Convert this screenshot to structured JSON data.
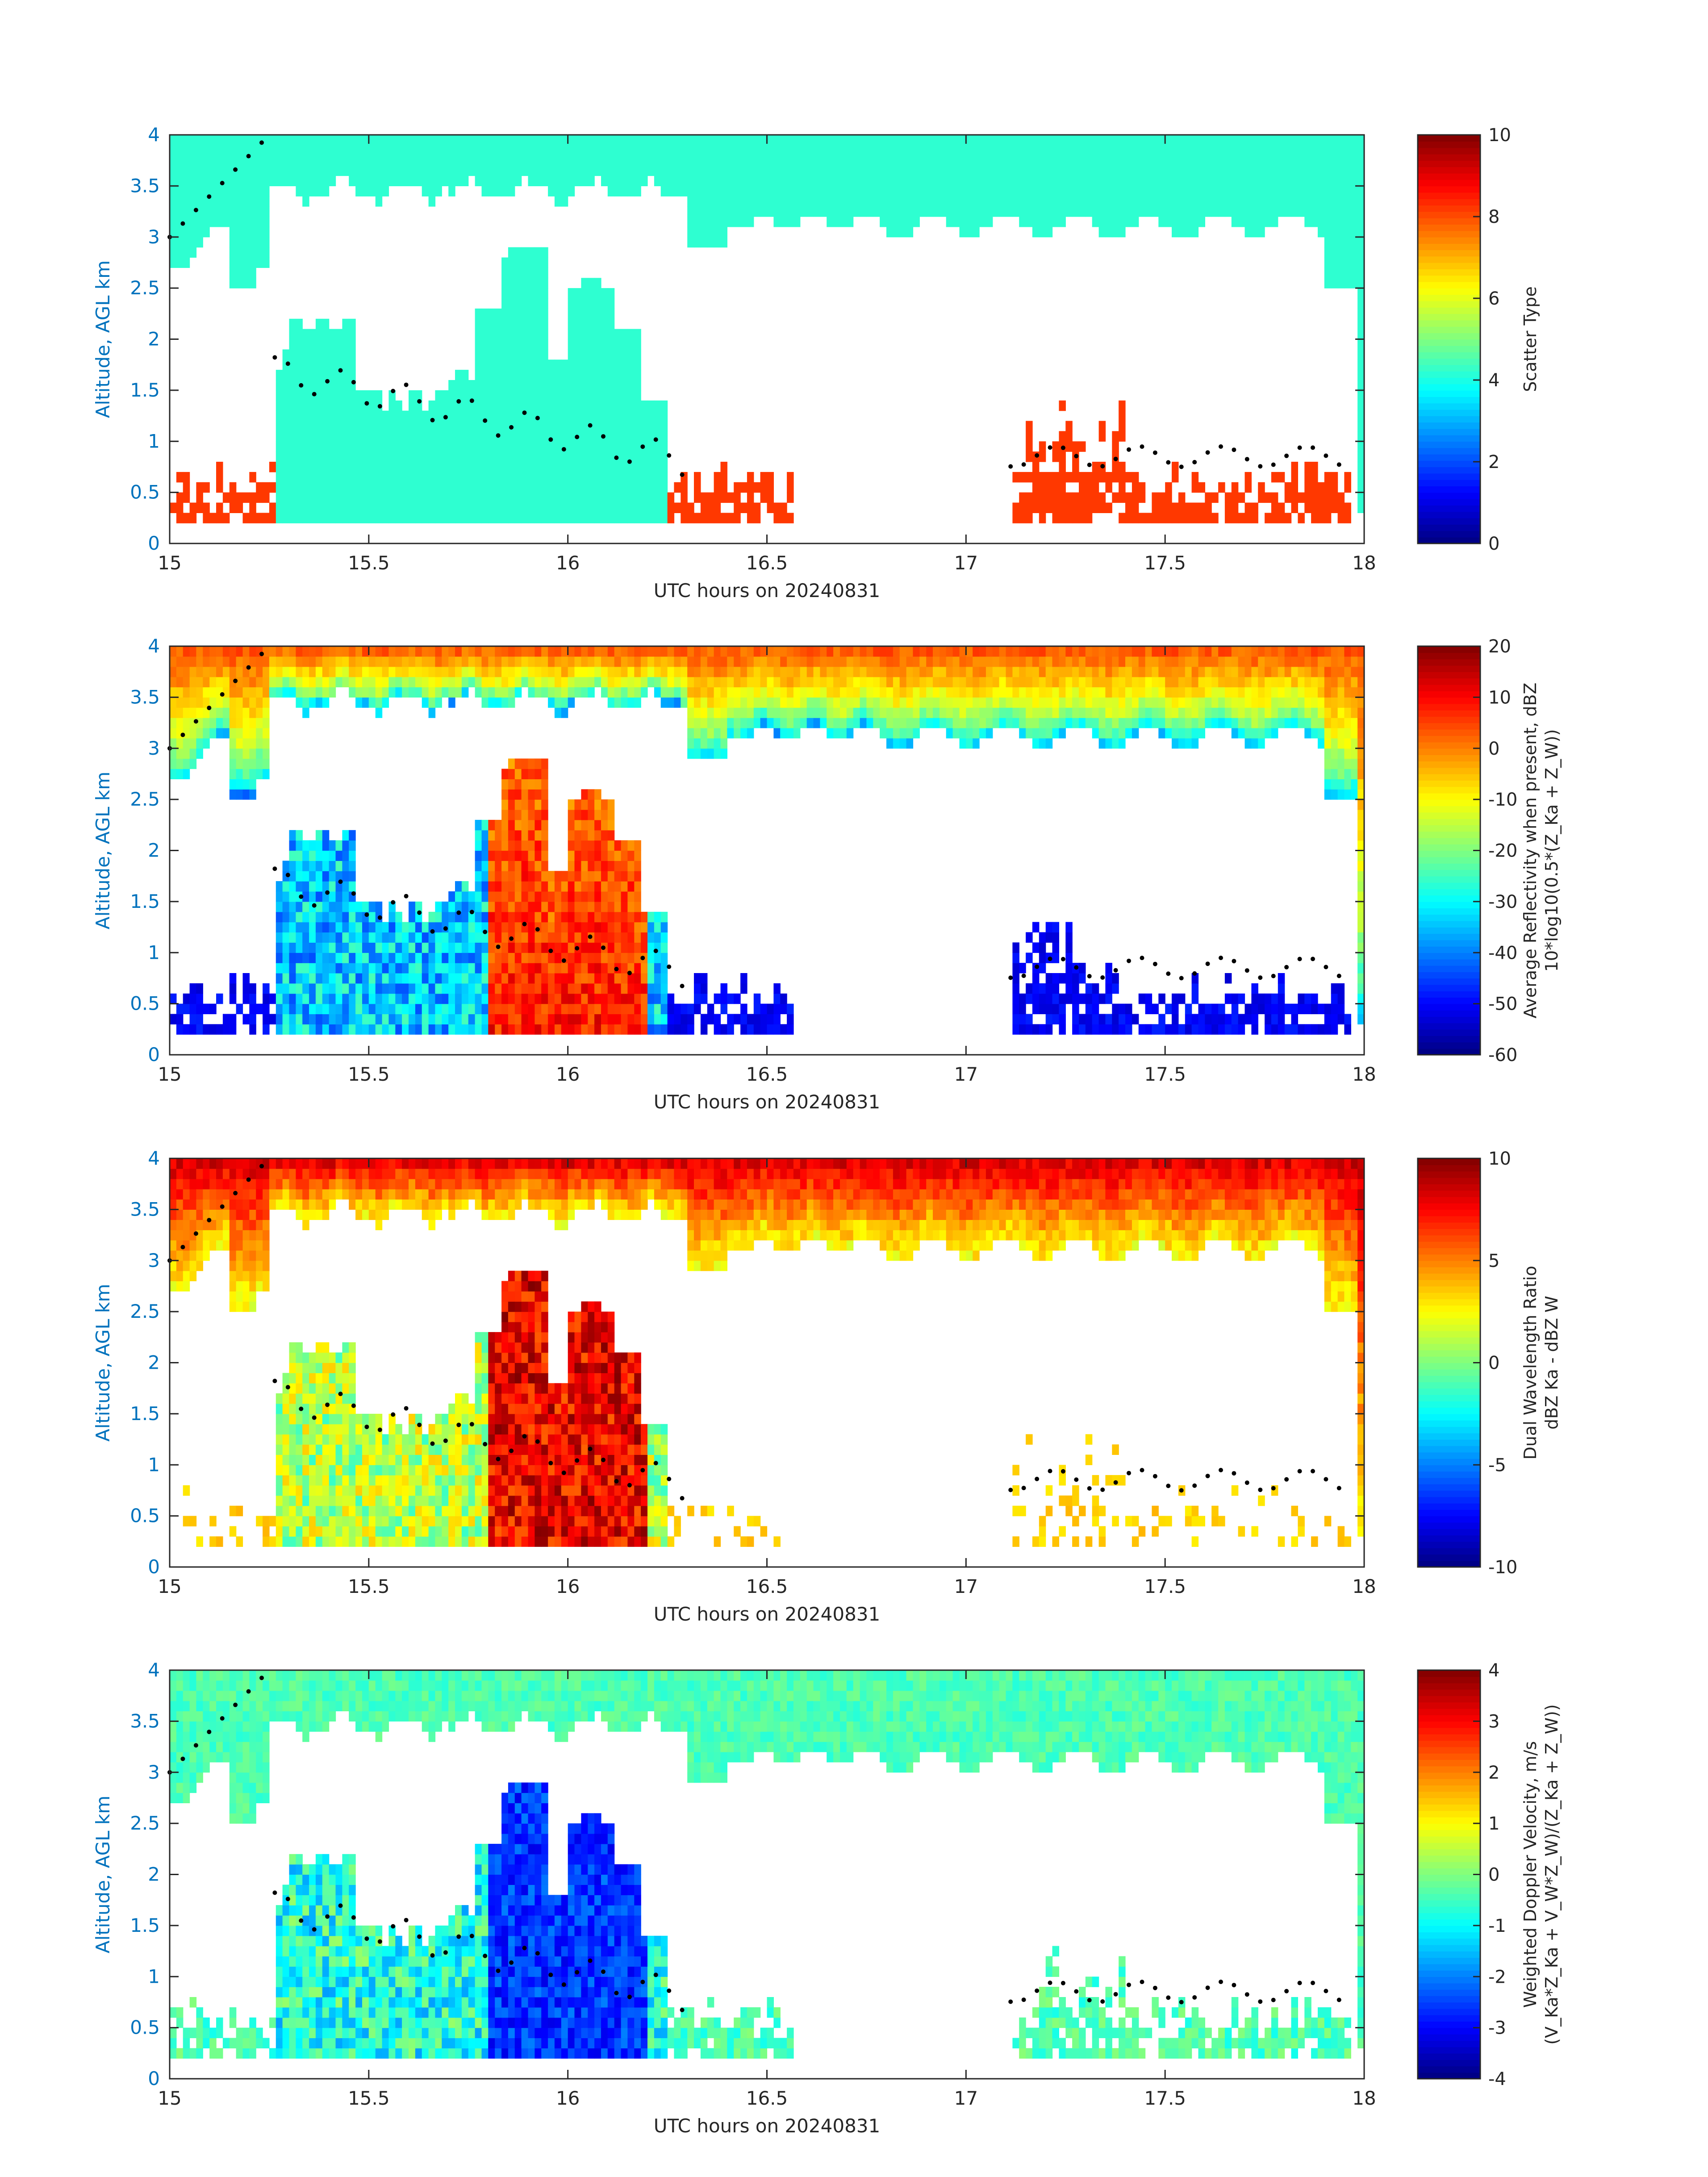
{
  "chart_data": [
    {
      "type": "heatmap",
      "title": "",
      "xlabel": "UTC hours on 20240831",
      "ylabel": "Altitude, AGL km",
      "xlim": [
        15,
        18
      ],
      "ylim": [
        0,
        4
      ],
      "xticks": [
        "15",
        "15.5",
        "16",
        "16.5",
        "17",
        "17.5",
        "18"
      ],
      "yticks": [
        "0",
        "0.5",
        "1",
        "1.5",
        "2",
        "2.5",
        "3",
        "3.5",
        "4"
      ],
      "colorbar": {
        "label_lines": [
          "Scatter Type"
        ],
        "clim": [
          0,
          10
        ],
        "ticks": [
          "0",
          "2",
          "4",
          "6",
          "8",
          "10"
        ],
        "colormap": "jet"
      },
      "field": "scatter_type",
      "description": "Cloud layer (value ~4) from ~2.8-3.5 km to 4 km across whole period; cloud columns below ~2.2 km between 15.25-15.5 h and 15.7-16.3 h; precipitation/drizzle (value ~8) below 0.8 km near 15.0-15.25, 16.3-16.55, 17.1-17.95 h"
    },
    {
      "type": "heatmap",
      "title": "",
      "xlabel": "UTC hours on 20240831",
      "ylabel": "Altitude, AGL km",
      "xlim": [
        15,
        18
      ],
      "ylim": [
        0,
        4
      ],
      "xticks": [
        "15",
        "15.5",
        "16",
        "16.5",
        "17",
        "17.5",
        "18"
      ],
      "yticks": [
        "0",
        "0.5",
        "1",
        "1.5",
        "2",
        "2.5",
        "3",
        "3.5",
        "4"
      ],
      "colorbar": {
        "label_lines": [
          "Average Reflectivity when present, dBZ",
          "10*log10(0.5*(Z_Ka + Z_W))"
        ],
        "clim": [
          -60,
          20
        ],
        "ticks": [
          "-60",
          "-50",
          "-40",
          "-30",
          "-20",
          "-10",
          "0",
          "10",
          "20"
        ],
        "colormap": "jet"
      },
      "field": "average_reflectivity_dbz",
      "description": "Cloud layer -5 to 5 dBZ near top, decreasing to -40 dBZ at base ~3 km; strong columns up to 10 dBZ between 15.8-16.2 h below 3 km; weak echoes near -55 dBZ below 0.8 km"
    },
    {
      "type": "heatmap",
      "title": "",
      "xlabel": "UTC hours on 20240831",
      "ylabel": "Altitude, AGL km",
      "xlim": [
        15,
        18
      ],
      "ylim": [
        0,
        4
      ],
      "xticks": [
        "15",
        "15.5",
        "16",
        "16.5",
        "17",
        "17.5",
        "18"
      ],
      "yticks": [
        "0",
        "0.5",
        "1",
        "1.5",
        "2",
        "2.5",
        "3",
        "3.5",
        "4"
      ],
      "colorbar": {
        "label_lines": [
          "Dual Wavelength Ratio",
          "dBZ Ka - dBZ W"
        ],
        "clim": [
          -10,
          10
        ],
        "ticks": [
          "-10",
          "-5",
          "0",
          "5",
          "10"
        ],
        "colormap": "jet"
      },
      "field": "dual_wavelength_ratio_db",
      "description": "Upper cloud layer 3-9 dB; columns 15.8-16.1 h reach 8-10 dB; scattered low-level values near 1-3 dB"
    },
    {
      "type": "heatmap",
      "title": "",
      "xlabel": "UTC hours on 20240831",
      "ylabel": "Altitude, AGL km",
      "xlim": [
        15,
        18
      ],
      "ylim": [
        0,
        4
      ],
      "xticks": [
        "15",
        "15.5",
        "16",
        "16.5",
        "17",
        "17.5",
        "18"
      ],
      "yticks": [
        "0",
        "0.5",
        "1",
        "1.5",
        "2",
        "2.5",
        "3",
        "3.5",
        "4"
      ],
      "colorbar": {
        "label_lines": [
          "Weighted Doppler Velocity, m/s",
          "(V_Ka*Z_Ka + V_W*Z_W)/(Z_Ka + Z_W))"
        ],
        "clim": [
          -4,
          4
        ],
        "ticks": [
          "-4",
          "-3",
          "-2",
          "-1",
          "0",
          "1",
          "2",
          "3",
          "4"
        ],
        "colormap": "jet"
      },
      "field": "weighted_doppler_velocity_ms",
      "description": "Upper cloud layer -1 to 0 m/s; columns 15.8-16.2 h down to -3.5 m/s; low-level echoes near 0 m/s"
    }
  ]
}
